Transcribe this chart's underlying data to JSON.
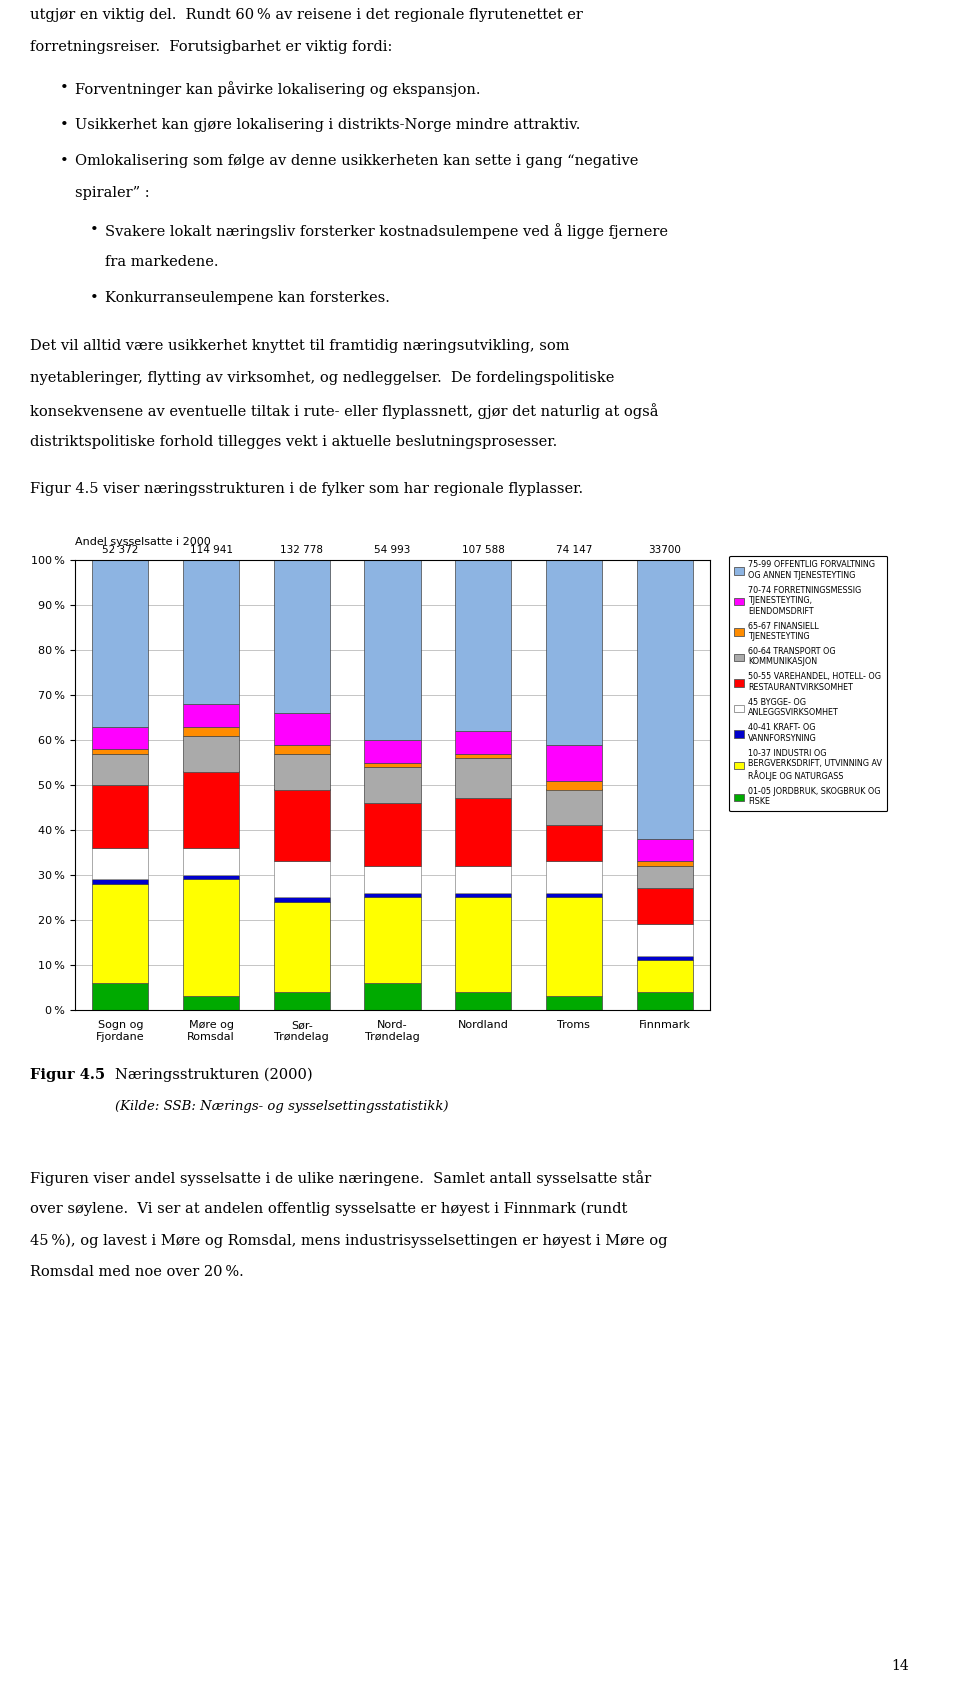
{
  "chart_title": "Andel sysselsatte i 2000",
  "categories": [
    "Sogn og\nFjordane",
    "Møre og\nRomsdal",
    "Sør-\nTrøndelag",
    "Nord-\nTrøndelag",
    "Nordland",
    "Troms",
    "Finnmark"
  ],
  "totals": [
    "52 372",
    "114 941",
    "132 778",
    "54 993",
    "107 588",
    "74 147",
    "33700"
  ],
  "series": [
    {
      "label": "01-05 JORDBRUK, SKOGBRUK OG\nFISKE",
      "color": "#00AA00",
      "values": [
        6,
        3,
        4,
        6,
        4,
        3,
        4
      ]
    },
    {
      "label": "10-37 INDUSTRI OG\nBERGVERKSDRIFT, UTVINNING AV\nRÅOLJE OG NATURGASS",
      "color": "#FFFF00",
      "values": [
        22,
        26,
        20,
        19,
        21,
        22,
        7
      ]
    },
    {
      "label": "40-41 KRAFT- OG\nVANNFORSYNING",
      "color": "#0000CC",
      "values": [
        1,
        1,
        1,
        1,
        1,
        1,
        1
      ]
    },
    {
      "label": "45 BYGGE- OG\nANLEGGSVIRKSOMHET",
      "color": "#FFFFFF",
      "values": [
        7,
        6,
        8,
        6,
        6,
        7,
        7
      ]
    },
    {
      "label": "50-55 VAREHANDEL, HOTELL- OG\nRESTAURANTVIRKSOMHET",
      "color": "#FF0000",
      "values": [
        14,
        17,
        16,
        14,
        15,
        8,
        8
      ]
    },
    {
      "label": "60-64 TRANSPORT OG\nKOMMUNIKASJON",
      "color": "#AAAAAA",
      "values": [
        7,
        8,
        8,
        8,
        9,
        8,
        5
      ]
    },
    {
      "label": "65-67 FINANSIELL\nTJENESTEYTING",
      "color": "#FF8C00",
      "values": [
        1,
        2,
        2,
        1,
        1,
        2,
        1
      ]
    },
    {
      "label": "70-74 FORRETNINGSMESSIG\nTJENESTEYTING,\nEIENDOMSDRIFT",
      "color": "#FF00FF",
      "values": [
        5,
        5,
        7,
        5,
        5,
        8,
        5
      ]
    },
    {
      "label": "75-99 OFFENTLIG FORVALTNING\nOG ANNEN TJENESTEYTING",
      "color": "#8DB4E2",
      "values": [
        37,
        32,
        34,
        40,
        38,
        41,
        62
      ]
    }
  ],
  "ylim": [
    0,
    100
  ],
  "yticks": [
    0,
    10,
    20,
    30,
    40,
    50,
    60,
    70,
    80,
    90,
    100
  ],
  "fig_width": 9.6,
  "fig_height": 16.93,
  "background_color": "#FFFFFF"
}
